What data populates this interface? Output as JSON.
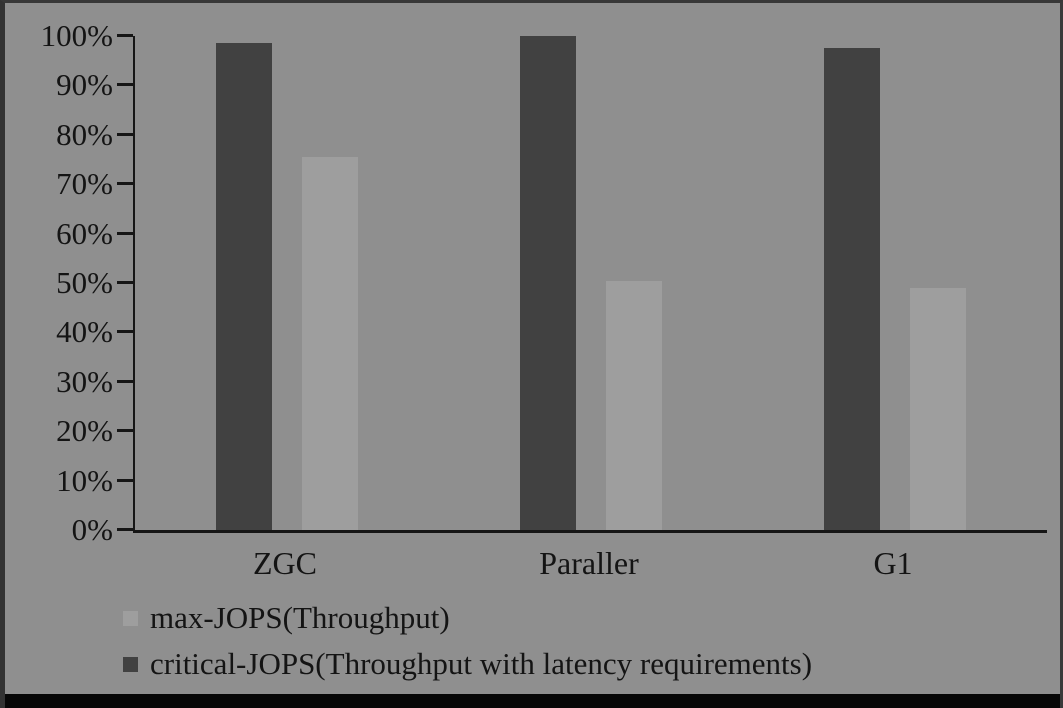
{
  "chart_data": {
    "type": "bar",
    "title": "",
    "xlabel": "",
    "ylabel": "",
    "categories": [
      "ZGC",
      "Paraller",
      "G1"
    ],
    "series": [
      {
        "name": "critical-JOPS(Throughput with latency requirements)",
        "color_key": "dark",
        "values": [
          98.5,
          100,
          97.5
        ]
      },
      {
        "name": "max-JOPS(Throughput)",
        "color_key": "light",
        "values": [
          75.5,
          50.5,
          49
        ]
      }
    ],
    "ylim": [
      0,
      100
    ],
    "ytick_step": 10,
    "ytick_labels": [
      "0%",
      "10%",
      "20%",
      "30%",
      "40%",
      "50%",
      "60%",
      "70%",
      "80%",
      "90%",
      "100%"
    ],
    "grid": "off",
    "legend_position": "bottom-left",
    "legend": [
      {
        "label": "max-JOPS(Throughput)",
        "color_key": "light"
      },
      {
        "label": "critical-JOPS(Throughput with latency requirements)",
        "color_key": "dark"
      }
    ],
    "colors": {
      "dark": "#414141",
      "light": "#9e9e9e",
      "background": "#8f8f8f",
      "axis": "#161616",
      "text": "#141414"
    }
  }
}
